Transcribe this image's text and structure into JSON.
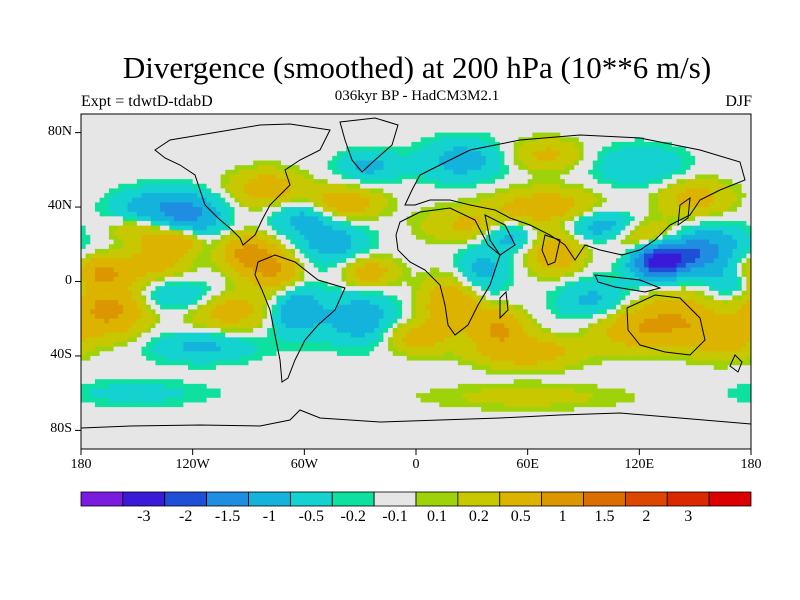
{
  "figure": {
    "title": "Divergence (smoothed) at 200 hPa (10**6 m/s)",
    "subtitle": "036kyr BP - HadCM3M2.1",
    "left_label": "Expt = tdwtD-tdabD",
    "right_label": "DJF"
  },
  "axes": {
    "y_ticks": [
      {
        "label": "80N",
        "lat": 80
      },
      {
        "label": "40N",
        "lat": 40
      },
      {
        "label": "0",
        "lat": 0
      },
      {
        "label": "40S",
        "lat": -40
      },
      {
        "label": "80S",
        "lat": -80
      }
    ],
    "x_ticks": [
      {
        "label": "180",
        "lon": -180
      },
      {
        "label": "120W",
        "lon": -120
      },
      {
        "label": "60W",
        "lon": -60
      },
      {
        "label": "0",
        "lon": 0
      },
      {
        "label": "60E",
        "lon": 60
      },
      {
        "label": "120E",
        "lon": 120
      },
      {
        "label": "180",
        "lon": 180
      }
    ],
    "lon_range": [
      -180,
      180
    ],
    "lat_range": [
      -90,
      90
    ]
  },
  "colorbar": {
    "colors": [
      "#7b1be0",
      "#3a1ad8",
      "#1f4fd6",
      "#1f8ee0",
      "#13b3dc",
      "#14d2cf",
      "#0ee0a0",
      "#e6e6e6",
      "#9ed30a",
      "#c8c800",
      "#dcb400",
      "#dc9600",
      "#dc6e00",
      "#dc4600",
      "#dc2800",
      "#dc0000"
    ],
    "labels": [
      "-3",
      "-2",
      "-1.5",
      "-1",
      "-0.5",
      "-0.2",
      "-0.1",
      "0.1",
      "0.2",
      "0.5",
      "1",
      "1.5",
      "2",
      "3"
    ]
  },
  "chart_data": {
    "type": "heatmap",
    "title": "Divergence (smoothed) at 200 hPa (10**6 m/s)",
    "subtitle": "036kyr BP - HadCM3M2.1",
    "season": "DJF",
    "units": "10**6 m/s",
    "levels": [
      -3,
      -2,
      -1.5,
      -1,
      -0.5,
      -0.2,
      -0.1,
      0.1,
      0.2,
      0.5,
      1,
      1.5,
      2,
      3
    ],
    "features": [
      {
        "lon": 130,
        "lat": 12,
        "value": -2.5,
        "sigma": [
          10,
          7
        ]
      },
      {
        "lon": 125,
        "lat": 22,
        "value": 1.0,
        "sigma": [
          12,
          7
        ]
      },
      {
        "lon": 148,
        "lat": 14,
        "value": -1.0,
        "sigma": [
          12,
          7
        ]
      },
      {
        "lon": 160,
        "lat": 20,
        "value": -0.6,
        "sigma": [
          14,
          8
        ]
      },
      {
        "lon": 100,
        "lat": 30,
        "value": -0.8,
        "sigma": [
          14,
          6
        ]
      },
      {
        "lon": 75,
        "lat": 15,
        "value": 0.9,
        "sigma": [
          10,
          8
        ]
      },
      {
        "lon": 70,
        "lat": 40,
        "value": 0.8,
        "sigma": [
          20,
          7
        ]
      },
      {
        "lon": 30,
        "lat": 30,
        "value": 0.6,
        "sigma": [
          18,
          7
        ]
      },
      {
        "lon": 50,
        "lat": 25,
        "value": -0.8,
        "sigma": [
          10,
          6
        ]
      },
      {
        "lon": 35,
        "lat": 5,
        "value": -0.7,
        "sigma": [
          10,
          10
        ]
      },
      {
        "lon": 20,
        "lat": -12,
        "value": 1.0,
        "sigma": [
          12,
          10
        ]
      },
      {
        "lon": 45,
        "lat": -25,
        "value": 1.0,
        "sigma": [
          10,
          7
        ]
      },
      {
        "lon": 60,
        "lat": -38,
        "value": 0.8,
        "sigma": [
          20,
          6
        ]
      },
      {
        "lon": 95,
        "lat": -10,
        "value": -0.6,
        "sigma": [
          14,
          8
        ]
      },
      {
        "lon": 115,
        "lat": -25,
        "value": 0.8,
        "sigma": [
          14,
          8
        ]
      },
      {
        "lon": 140,
        "lat": -20,
        "value": 0.9,
        "sigma": [
          14,
          10
        ]
      },
      {
        "lon": 165,
        "lat": -30,
        "value": 0.8,
        "sigma": [
          12,
          8
        ]
      },
      {
        "lon": 170,
        "lat": 0,
        "value": -0.6,
        "sigma": [
          10,
          6
        ]
      },
      {
        "lon": -170,
        "lat": 5,
        "value": 1.0,
        "sigma": [
          12,
          6
        ]
      },
      {
        "lon": -165,
        "lat": -15,
        "value": 1.2,
        "sigma": [
          14,
          10
        ]
      },
      {
        "lon": -140,
        "lat": 10,
        "value": 0.7,
        "sigma": [
          12,
          6
        ]
      },
      {
        "lon": -140,
        "lat": 40,
        "value": -0.8,
        "sigma": [
          16,
          7
        ]
      },
      {
        "lon": -120,
        "lat": 35,
        "value": -0.9,
        "sigma": [
          12,
          8
        ]
      },
      {
        "lon": -130,
        "lat": 22,
        "value": 1.0,
        "sigma": [
          10,
          5
        ]
      },
      {
        "lon": -150,
        "lat": 28,
        "value": 0.5,
        "sigma": [
          10,
          5
        ]
      },
      {
        "lon": -125,
        "lat": -8,
        "value": -0.6,
        "sigma": [
          18,
          6
        ]
      },
      {
        "lon": -100,
        "lat": -15,
        "value": 0.8,
        "sigma": [
          16,
          8
        ]
      },
      {
        "lon": -115,
        "lat": -35,
        "value": -0.6,
        "sigma": [
          20,
          6
        ]
      },
      {
        "lon": -90,
        "lat": 15,
        "value": 1.2,
        "sigma": [
          10,
          7
        ]
      },
      {
        "lon": -75,
        "lat": 5,
        "value": 1.0,
        "sigma": [
          10,
          8
        ]
      },
      {
        "lon": -65,
        "lat": -15,
        "value": -0.9,
        "sigma": [
          10,
          10
        ]
      },
      {
        "lon": -80,
        "lat": 50,
        "value": 0.8,
        "sigma": [
          14,
          7
        ]
      },
      {
        "lon": -60,
        "lat": 35,
        "value": -0.7,
        "sigma": [
          12,
          7
        ]
      },
      {
        "lon": -45,
        "lat": 20,
        "value": -0.7,
        "sigma": [
          14,
          8
        ]
      },
      {
        "lon": -40,
        "lat": 42,
        "value": 0.9,
        "sigma": [
          14,
          6
        ]
      },
      {
        "lon": -25,
        "lat": 5,
        "value": 0.8,
        "sigma": [
          10,
          6
        ]
      },
      {
        "lon": -30,
        "lat": -20,
        "value": -0.8,
        "sigma": [
          14,
          10
        ]
      },
      {
        "lon": 0,
        "lat": -30,
        "value": 0.7,
        "sigma": [
          12,
          6
        ]
      },
      {
        "lon": -25,
        "lat": 62,
        "value": -0.6,
        "sigma": [
          12,
          6
        ]
      },
      {
        "lon": 25,
        "lat": 65,
        "value": -0.7,
        "sigma": [
          16,
          8
        ]
      },
      {
        "lon": 70,
        "lat": 68,
        "value": 0.6,
        "sigma": [
          14,
          6
        ]
      },
      {
        "lon": 120,
        "lat": 62,
        "value": -0.5,
        "sigma": [
          18,
          8
        ]
      },
      {
        "lon": 150,
        "lat": 45,
        "value": 0.7,
        "sigma": [
          14,
          7
        ]
      },
      {
        "lon": 60,
        "lat": -62,
        "value": 0.3,
        "sigma": [
          40,
          5
        ]
      },
      {
        "lon": -150,
        "lat": -60,
        "value": -0.3,
        "sigma": [
          30,
          5
        ]
      }
    ]
  }
}
